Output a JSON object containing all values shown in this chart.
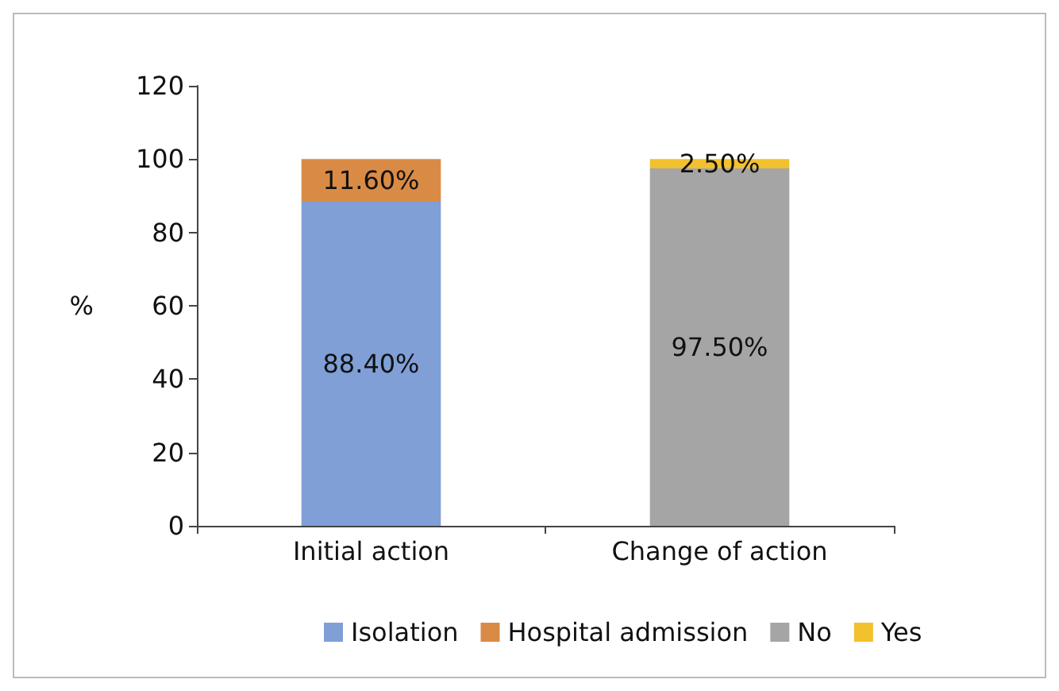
{
  "chart_data": {
    "type": "bar",
    "stacked": true,
    "ylabel": "%",
    "categories": [
      "Initial action",
      "Change of action"
    ],
    "series": [
      {
        "name": "Isolation",
        "color": "#7f9fd6",
        "values": [
          88.4,
          null
        ],
        "value_labels": [
          "88.40%",
          null
        ]
      },
      {
        "name": "Hospital admission",
        "color": "#d98b45",
        "values": [
          11.6,
          null
        ],
        "value_labels": [
          "11.60%",
          null
        ]
      },
      {
        "name": "No",
        "color": "#a5a5a5",
        "values": [
          null,
          97.5
        ],
        "value_labels": [
          null,
          "97.50%"
        ]
      },
      {
        "name": "Yes",
        "color": "#f2c12e",
        "values": [
          null,
          2.5
        ],
        "value_labels": [
          null,
          "2.50%"
        ]
      }
    ],
    "ylim": [
      0,
      120
    ],
    "yticks": [
      0,
      20,
      40,
      60,
      80,
      100,
      120
    ],
    "grid": false,
    "legend": "bottom"
  }
}
